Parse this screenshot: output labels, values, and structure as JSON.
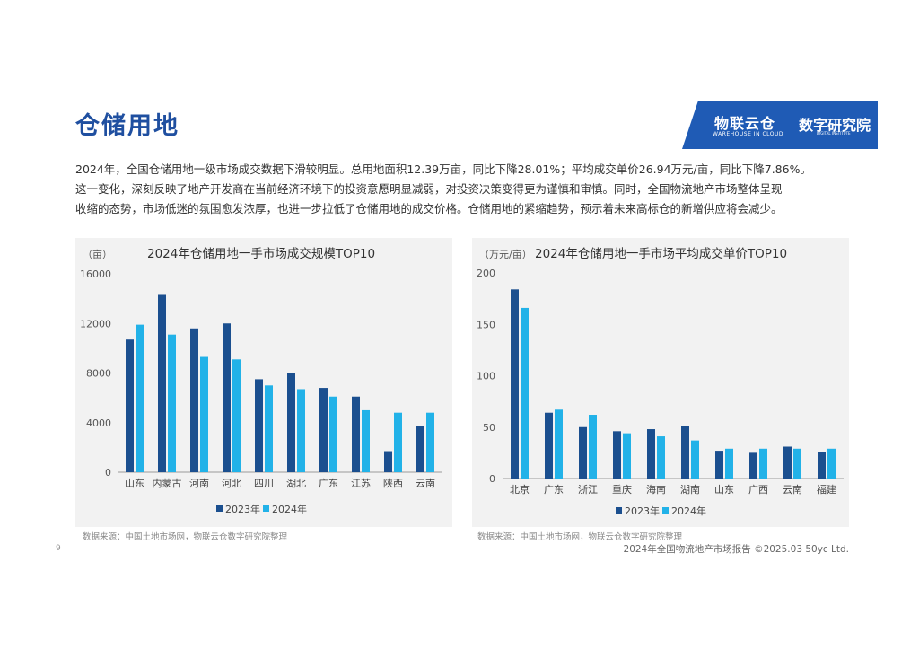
{
  "page": {
    "title": "仓储用地",
    "paragraph": [
      "2024年，全国仓储用地一级市场成交数据下滑较明显。总用地面积12.39万亩，同比下降28.01%；平均成交单价26.94万元/亩，同比下降7.86%。",
      "这一变化，深刻反映了地产开发商在当前经济环境下的投资意愿明显减弱，对投资决策变得更为谨慎和审慎。同时，全国物流地产市场整体呈现",
      "收缩的态势，市场低迷的氛围愈发浓厚，也进一步拉低了仓储用地的成交价格。仓储用地的紧缩趋势，预示着未来高标仓的新增供应将会减少。"
    ],
    "page_number": "9",
    "footer": "2024年全国物流地产市场报告    ©2025.03    50yc Ltd."
  },
  "brand": {
    "name": "物联云仓",
    "sub": "WAREHOUSE IN CLOUD",
    "institute": "数字研究院",
    "institute_sub": "DIGITAL INSTITUTE"
  },
  "colors": {
    "series2023": "#1b4f8f",
    "series2024": "#22b2e8",
    "title_blue": "#1f4fa0",
    "panel_bg": "#f2f2f2"
  },
  "chart_data": [
    {
      "type": "bar",
      "title": "2024年仓储用地一手市场成交规模TOP10",
      "ylabel": "（亩）",
      "xlabel": "",
      "categories": [
        "山东",
        "内蒙古",
        "河南",
        "河北",
        "四川",
        "湖北",
        "广东",
        "江苏",
        "陕西",
        "云南"
      ],
      "series": [
        {
          "name": "2023年",
          "values": [
            10700,
            14300,
            11600,
            12000,
            7500,
            8000,
            6800,
            6100,
            1700,
            3700
          ]
        },
        {
          "name": "2024年",
          "values": [
            11900,
            11100,
            9300,
            9100,
            7000,
            6700,
            6100,
            5000,
            4800,
            4800
          ]
        }
      ],
      "ylim": [
        0,
        16000
      ],
      "yticks": [
        "0",
        "4000",
        "8000",
        "12000",
        "16000"
      ],
      "legend": "bottom",
      "grid": false,
      "source": "数据来源：中国土地市场网，物联云仓数字研究院整理"
    },
    {
      "type": "bar",
      "title": "2024年仓储用地一手市场平均成交单价TOP10",
      "ylabel": "（万元/亩）",
      "xlabel": "",
      "categories": [
        "北京",
        "广东",
        "浙江",
        "重庆",
        "海南",
        "湖南",
        "山东",
        "广西",
        "云南",
        "福建"
      ],
      "series": [
        {
          "name": "2023年",
          "values": [
            184,
            64,
            50,
            46,
            48,
            51,
            27,
            25,
            31,
            26
          ]
        },
        {
          "name": "2024年",
          "values": [
            166,
            67,
            62,
            44,
            41,
            37,
            29,
            29,
            29,
            29
          ]
        }
      ],
      "ylim": [
        0,
        200
      ],
      "yticks": [
        "0",
        "50",
        "100",
        "150",
        "200"
      ],
      "legend": "bottom",
      "grid": false,
      "source": "数据来源：中国土地市场网，物联云仓数字研究院整理"
    }
  ]
}
